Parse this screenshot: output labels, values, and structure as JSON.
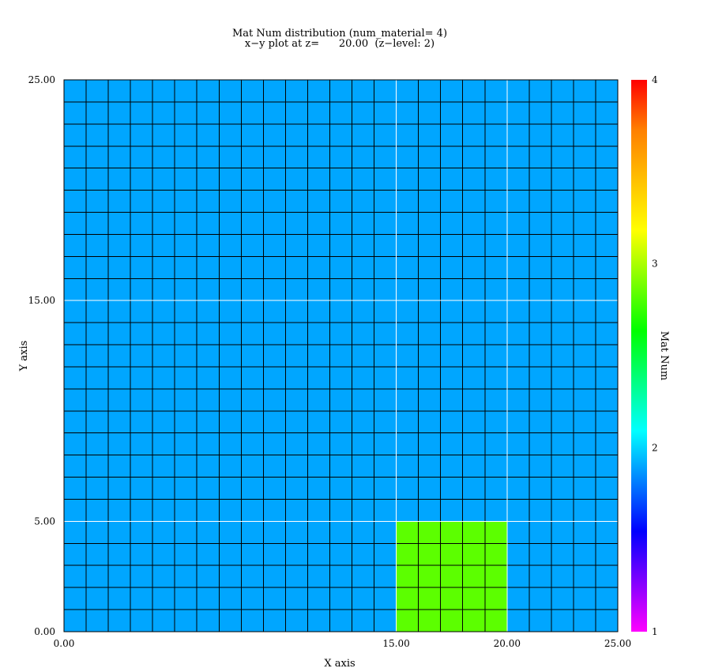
{
  "chart_data": {
    "type": "heatmap",
    "title": "Mat Num distribution (num_material= 4)",
    "subtitle": "x−y plot at z=      20.00  (z−level: 2)",
    "xlabel": "X axis",
    "ylabel": "Y axis",
    "xlim": [
      0,
      25
    ],
    "ylim": [
      0,
      25
    ],
    "x_ticks": [
      0,
      15,
      20,
      25
    ],
    "x_tick_labels": [
      "0.00",
      "15.00",
      "20.00",
      "25.00"
    ],
    "y_ticks": [
      0,
      5,
      15,
      25
    ],
    "y_tick_labels": [
      "0.00",
      "5.00",
      "15.00",
      "25.00"
    ],
    "cell_size": 1,
    "background_value": 2,
    "regions": [
      {
        "value": 3,
        "x": [
          15,
          20
        ],
        "y": [
          0,
          5
        ]
      }
    ],
    "colorbar": {
      "label": "Mat Num",
      "range": [
        1,
        4
      ],
      "ticks": [
        1,
        2,
        3,
        4
      ],
      "tick_labels": [
        "1",
        "2",
        "3",
        "4"
      ],
      "gradient": [
        "#ff00ff",
        "#8000ff",
        "#0000ff",
        "#0080ff",
        "#00ffff",
        "#00ff80",
        "#00ff00",
        "#80ff00",
        "#ffff00",
        "#ffc000",
        "#ff8000",
        "#ff0000"
      ]
    },
    "value_colors": {
      "2": "#00a6ff",
      "3": "#5cff00"
    },
    "grid": true,
    "gridline_color": "#000000",
    "boundary_line_color": "#ffffff"
  }
}
